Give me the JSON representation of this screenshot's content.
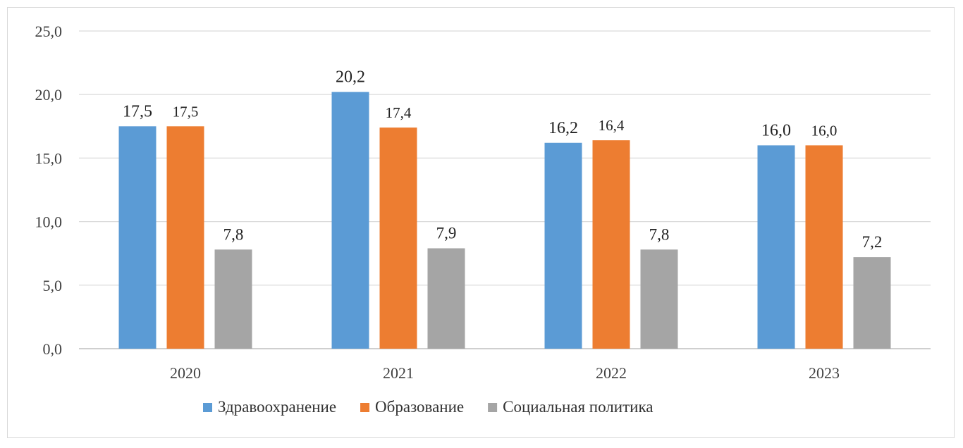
{
  "chart_data": {
    "type": "bar",
    "categories": [
      "2020",
      "2021",
      "2022",
      "2023"
    ],
    "series": [
      {
        "name": "Здравоохранение",
        "values": [
          17.5,
          20.2,
          16.2,
          16.0
        ],
        "labels": [
          "17,5",
          "20,2",
          "16,2",
          "16,0"
        ],
        "color": "#5b9bd5"
      },
      {
        "name": "Образование",
        "values": [
          17.5,
          17.4,
          16.4,
          16.0
        ],
        "labels": [
          "17,5",
          "17,4",
          "16,4",
          "16,0"
        ],
        "color": "#ed7d31"
      },
      {
        "name": "Социальная политика",
        "values": [
          7.8,
          7.9,
          7.8,
          7.2
        ],
        "labels": [
          "7,8",
          "7,9",
          "7,8",
          "7,2"
        ],
        "color": "#a5a5a5"
      }
    ],
    "y_ticks": [
      "0,0",
      "5,0",
      "10,0",
      "15,0",
      "20,0",
      "25,0"
    ],
    "ylim": [
      0,
      25
    ],
    "grid": true,
    "legend_position": "bottom",
    "title": "",
    "xlabel": "",
    "ylabel": ""
  }
}
